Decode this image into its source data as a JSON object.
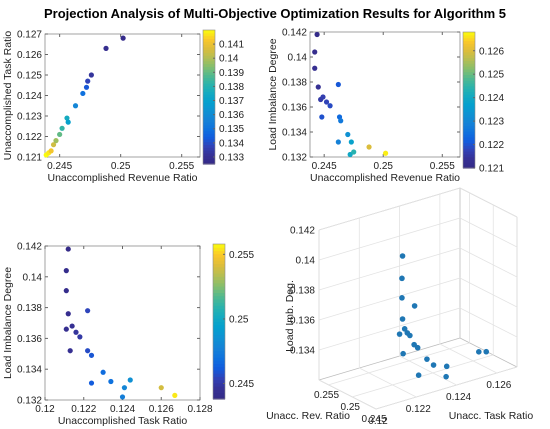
{
  "title": "Projection Analysis of Multi-Objective Optimization Results for Algorithm 5",
  "colors": {
    "viridis": [
      "#440154",
      "#3b528b",
      "#21918c",
      "#5ec962",
      "#fde725"
    ],
    "point3d": "#1f77b4"
  },
  "chart_data": [
    {
      "type": "scatter",
      "xlabel": "Unaccomplished Revenue Ratio",
      "ylabel": "Unaccomplished Task Ratio",
      "xlim": [
        0.2438,
        0.2565
      ],
      "ylim": [
        0.121,
        0.127
      ],
      "xticks": [
        0.245,
        0.25,
        0.255
      ],
      "xtick_labels": [
        "0.245",
        "0.25",
        "0.255"
      ],
      "yticks": [
        0.121,
        0.122,
        0.123,
        0.124,
        0.125,
        0.126,
        0.127
      ],
      "ytick_labels": [
        "0.121",
        "0.122",
        "0.123",
        "0.124",
        "0.125",
        "0.126",
        "0.127"
      ],
      "colorbar": {
        "min": 0.1325,
        "max": 0.142,
        "ticks": [
          0.133,
          0.134,
          0.135,
          0.136,
          0.137,
          0.138,
          0.139,
          0.14,
          0.141
        ],
        "tick_labels": [
          "0.133",
          "0.134",
          "0.135",
          "0.136",
          "0.137",
          "0.138",
          "0.139",
          "0.14",
          "0.141"
        ]
      },
      "points": [
        {
          "x": 0.2439,
          "y": 0.1211,
          "c": 0.1425
        },
        {
          "x": 0.2441,
          "y": 0.1212,
          "c": 0.1418
        },
        {
          "x": 0.2443,
          "y": 0.1213,
          "c": 0.1412
        },
        {
          "x": 0.2445,
          "y": 0.1216,
          "c": 0.1405
        },
        {
          "x": 0.2447,
          "y": 0.1218,
          "c": 0.1398
        },
        {
          "x": 0.245,
          "y": 0.1221,
          "c": 0.139
        },
        {
          "x": 0.2452,
          "y": 0.1224,
          "c": 0.1383
        },
        {
          "x": 0.2456,
          "y": 0.1229,
          "c": 0.1376
        },
        {
          "x": 0.2457,
          "y": 0.1227,
          "c": 0.137
        },
        {
          "x": 0.2463,
          "y": 0.1235,
          "c": 0.1358
        },
        {
          "x": 0.2469,
          "y": 0.1241,
          "c": 0.135
        },
        {
          "x": 0.2472,
          "y": 0.1244,
          "c": 0.1343
        },
        {
          "x": 0.2473,
          "y": 0.1247,
          "c": 0.1338
        },
        {
          "x": 0.2476,
          "y": 0.125,
          "c": 0.1333
        },
        {
          "x": 0.2488,
          "y": 0.1263,
          "c": 0.1329
        },
        {
          "x": 0.2502,
          "y": 0.1268,
          "c": 0.1327
        }
      ]
    },
    {
      "type": "scatter",
      "xlabel": "Unaccomplished Revenue Ratio",
      "ylabel": "Load Imbalance Degree",
      "xlim": [
        0.2438,
        0.2565
      ],
      "ylim": [
        0.132,
        0.142
      ],
      "xticks": [
        0.245,
        0.25,
        0.255
      ],
      "xtick_labels": [
        "0.245",
        "0.25",
        "0.255"
      ],
      "yticks": [
        0.132,
        0.134,
        0.136,
        0.138,
        0.14,
        0.142
      ],
      "ytick_labels": [
        "0.132",
        "0.134",
        "0.136",
        "0.138",
        "0.14",
        "0.142"
      ],
      "colorbar": {
        "min": 0.121,
        "max": 0.1268,
        "ticks": [
          0.121,
          0.122,
          0.123,
          0.124,
          0.125,
          0.126
        ],
        "tick_labels": [
          "0.121",
          "0.122",
          "0.123",
          "0.124",
          "0.125",
          "0.126"
        ]
      },
      "points": [
        {
          "x": 0.2444,
          "y": 0.1418,
          "c": 0.1211
        },
        {
          "x": 0.2442,
          "y": 0.1404,
          "c": 0.1212
        },
        {
          "x": 0.2442,
          "y": 0.1391,
          "c": 0.1213
        },
        {
          "x": 0.2445,
          "y": 0.1376,
          "c": 0.1214
        },
        {
          "x": 0.2447,
          "y": 0.1366,
          "c": 0.1216
        },
        {
          "x": 0.2449,
          "y": 0.1368,
          "c": 0.1217
        },
        {
          "x": 0.2452,
          "y": 0.1364,
          "c": 0.1218
        },
        {
          "x": 0.2455,
          "y": 0.1361,
          "c": 0.1219
        },
        {
          "x": 0.2448,
          "y": 0.1352,
          "c": 0.122
        },
        {
          "x": 0.2462,
          "y": 0.1378,
          "c": 0.1221
        },
        {
          "x": 0.2463,
          "y": 0.1352,
          "c": 0.1224
        },
        {
          "x": 0.2464,
          "y": 0.1349,
          "c": 0.1227
        },
        {
          "x": 0.2462,
          "y": 0.1332,
          "c": 0.1229
        },
        {
          "x": 0.247,
          "y": 0.1338,
          "c": 0.1233
        },
        {
          "x": 0.2473,
          "y": 0.1332,
          "c": 0.1238
        },
        {
          "x": 0.2472,
          "y": 0.1322,
          "c": 0.124
        },
        {
          "x": 0.2475,
          "y": 0.1324,
          "c": 0.1244
        },
        {
          "x": 0.2488,
          "y": 0.1328,
          "c": 0.126
        },
        {
          "x": 0.2502,
          "y": 0.1323,
          "c": 0.1267
        }
      ]
    },
    {
      "type": "scatter",
      "xlabel": "Unaccomplished Task Ratio",
      "ylabel": "Load Imbalance Degree",
      "xlim": [
        0.12,
        0.128
      ],
      "ylim": [
        0.132,
        0.142
      ],
      "xticks": [
        0.12,
        0.122,
        0.124,
        0.126,
        0.128
      ],
      "xtick_labels": [
        "0.12",
        "0.122",
        "0.124",
        "0.126",
        "0.128"
      ],
      "yticks": [
        0.132,
        0.134,
        0.136,
        0.138,
        0.14,
        0.142
      ],
      "ytick_labels": [
        "0.132",
        "0.134",
        "0.136",
        "0.138",
        "0.14",
        "0.142"
      ],
      "colorbar": {
        "min": 0.2438,
        "max": 0.2558,
        "ticks": [
          0.245,
          0.25,
          0.255
        ],
        "tick_labels": [
          "0.245",
          "0.25",
          "0.255"
        ]
      },
      "points": [
        {
          "x": 0.1212,
          "y": 0.1418,
          "c": 0.2439
        },
        {
          "x": 0.1211,
          "y": 0.1404,
          "c": 0.2441
        },
        {
          "x": 0.1211,
          "y": 0.1391,
          "c": 0.2441
        },
        {
          "x": 0.1212,
          "y": 0.1376,
          "c": 0.2443
        },
        {
          "x": 0.1211,
          "y": 0.1366,
          "c": 0.2444
        },
        {
          "x": 0.1214,
          "y": 0.1368,
          "c": 0.2446
        },
        {
          "x": 0.1216,
          "y": 0.1364,
          "c": 0.2448
        },
        {
          "x": 0.1218,
          "y": 0.1361,
          "c": 0.245
        },
        {
          "x": 0.1213,
          "y": 0.1352,
          "c": 0.2445
        },
        {
          "x": 0.1222,
          "y": 0.1378,
          "c": 0.2455
        },
        {
          "x": 0.1222,
          "y": 0.1352,
          "c": 0.2457
        },
        {
          "x": 0.1224,
          "y": 0.1349,
          "c": 0.246
        },
        {
          "x": 0.1224,
          "y": 0.1331,
          "c": 0.2462
        },
        {
          "x": 0.123,
          "y": 0.1338,
          "c": 0.2468
        },
        {
          "x": 0.1234,
          "y": 0.1332,
          "c": 0.247
        },
        {
          "x": 0.124,
          "y": 0.1322,
          "c": 0.2476
        },
        {
          "x": 0.1241,
          "y": 0.1328,
          "c": 0.248
        },
        {
          "x": 0.1244,
          "y": 0.1333,
          "c": 0.2485
        },
        {
          "x": 0.126,
          "y": 0.1328,
          "c": 0.254
        },
        {
          "x": 0.1267,
          "y": 0.1323,
          "c": 0.2555
        }
      ]
    },
    {
      "type": "scatter3d",
      "xlabel": "Unacc. Rev. Ratio",
      "ylabel": "Unacc. Task Ratio",
      "zlabel": "Load Imb. Deg.",
      "xlim": [
        0.245,
        0.257
      ],
      "ylim": [
        0.12,
        0.127
      ],
      "zlim": [
        0.132,
        0.142
      ],
      "xticks": [
        0.245,
        0.25,
        0.255
      ],
      "xtick_labels": [
        "0.245",
        "0.25",
        "0.255"
      ],
      "yticks": [
        0.12,
        0.122,
        0.124,
        0.126
      ],
      "ytick_labels": [
        "0.12",
        "0.122",
        "0.124",
        "0.126"
      ],
      "zticks": [
        0.134,
        0.136,
        0.138,
        0.14,
        0.142
      ],
      "ztick_labels": [
        "0.134",
        "0.136",
        "0.138",
        "0.14",
        "0.142"
      ],
      "points": [
        {
          "x": 0.2445,
          "y": 0.1212,
          "z": 0.1418
        },
        {
          "x": 0.2442,
          "y": 0.1211,
          "z": 0.1404
        },
        {
          "x": 0.2442,
          "y": 0.1211,
          "z": 0.1391
        },
        {
          "x": 0.2445,
          "y": 0.1212,
          "z": 0.1376
        },
        {
          "x": 0.2447,
          "y": 0.1211,
          "z": 0.1366
        },
        {
          "x": 0.2449,
          "y": 0.1214,
          "z": 0.1368
        },
        {
          "x": 0.2452,
          "y": 0.1216,
          "z": 0.1364
        },
        {
          "x": 0.2455,
          "y": 0.1218,
          "z": 0.1361
        },
        {
          "x": 0.2448,
          "y": 0.1213,
          "z": 0.1352
        },
        {
          "x": 0.2462,
          "y": 0.1222,
          "z": 0.1378
        },
        {
          "x": 0.2463,
          "y": 0.1222,
          "z": 0.1352
        },
        {
          "x": 0.2464,
          "y": 0.1224,
          "z": 0.1349
        },
        {
          "x": 0.2462,
          "y": 0.1224,
          "z": 0.1331
        },
        {
          "x": 0.247,
          "y": 0.123,
          "z": 0.1338
        },
        {
          "x": 0.2473,
          "y": 0.1234,
          "z": 0.1332
        },
        {
          "x": 0.2472,
          "y": 0.124,
          "z": 0.1322
        },
        {
          "x": 0.2475,
          "y": 0.1241,
          "z": 0.1328
        },
        {
          "x": 0.2488,
          "y": 0.126,
          "z": 0.1328
        },
        {
          "x": 0.2502,
          "y": 0.1267,
          "z": 0.1323
        }
      ]
    }
  ]
}
